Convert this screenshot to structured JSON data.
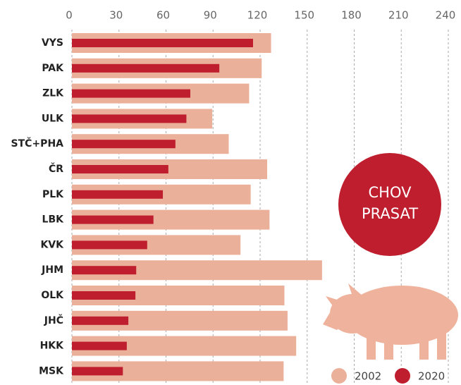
{
  "chart_data": {
    "type": "bar",
    "orientation": "horizontal",
    "categories": [
      "VYS",
      "PAK",
      "ZLK",
      "ULK",
      "STČ+PHA",
      "ČR",
      "PLK",
      "LBK",
      "KVK",
      "JHM",
      "OLK",
      "JHČ",
      "HKK",
      "MSK"
    ],
    "series": [
      {
        "name": "2002",
        "color": "#ebb09a",
        "values": [
          127,
          121,
          113,
          89.5,
          100,
          124.5,
          114,
          126,
          107.5,
          159.5,
          135.5,
          137.5,
          143,
          135
        ]
      },
      {
        "name": "2020",
        "color": "#bf1e2e",
        "values": [
          115.5,
          94,
          75.5,
          73,
          66,
          61.5,
          58,
          52,
          48,
          41,
          40.5,
          36,
          35,
          32.5
        ]
      }
    ],
    "xlim": [
      0,
      240
    ],
    "xticks": [
      0,
      30,
      60,
      90,
      120,
      150,
      180,
      210,
      240
    ],
    "grid": true,
    "badge": [
      "CHOV",
      "PRASAT"
    ]
  }
}
